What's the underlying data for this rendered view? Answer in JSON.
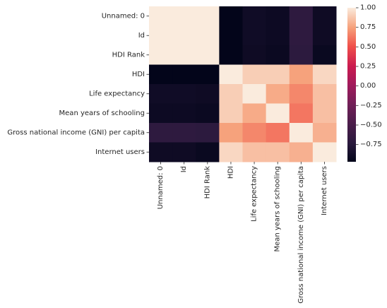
{
  "chart_data": {
    "type": "heatmap",
    "title": "",
    "xlabel": "",
    "ylabel": "",
    "row_labels": [
      "Unnamed: 0",
      "Id",
      "HDI Rank",
      "HDI",
      "Life expectancy",
      "Mean years of schooling",
      "Gross national income (GNI) per capita",
      "Internet users"
    ],
    "col_labels": [
      "Unnamed: 0",
      "Id",
      "HDI Rank",
      "HDI",
      "Life expectancy",
      "Mean years of schooling",
      "Gross national income (GNI) per capita",
      "Internet users"
    ],
    "values": [
      [
        1.0,
        1.0,
        1.0,
        -0.97,
        -0.89,
        -0.91,
        -0.7,
        -0.9
      ],
      [
        1.0,
        1.0,
        1.0,
        -0.97,
        -0.89,
        -0.91,
        -0.7,
        -0.9
      ],
      [
        1.0,
        1.0,
        1.0,
        -0.98,
        -0.9,
        -0.92,
        -0.72,
        -0.93
      ],
      [
        -0.97,
        -0.97,
        -0.98,
        1.0,
        0.9,
        0.9,
        0.75,
        0.93
      ],
      [
        -0.89,
        -0.89,
        -0.9,
        0.9,
        1.0,
        0.78,
        0.67,
        0.85
      ],
      [
        -0.91,
        -0.91,
        -0.92,
        0.9,
        0.78,
        1.0,
        0.62,
        0.85
      ],
      [
        -0.7,
        -0.7,
        -0.72,
        0.75,
        0.67,
        0.62,
        1.0,
        0.8
      ],
      [
        -0.9,
        -0.9,
        -0.93,
        0.93,
        0.85,
        0.85,
        0.8,
        1.0
      ]
    ],
    "colorbar": {
      "cmap": "rocket",
      "vmin": -0.97,
      "vmax": 1.0,
      "ticks": [
        1.0,
        0.75,
        0.5,
        0.25,
        0.0,
        -0.25,
        -0.5,
        -0.75
      ],
      "tick_labels": [
        "1.00",
        "0.75",
        "0.50",
        "0.25",
        "0.00",
        "−0.25",
        "−0.50",
        "−0.75"
      ]
    }
  }
}
